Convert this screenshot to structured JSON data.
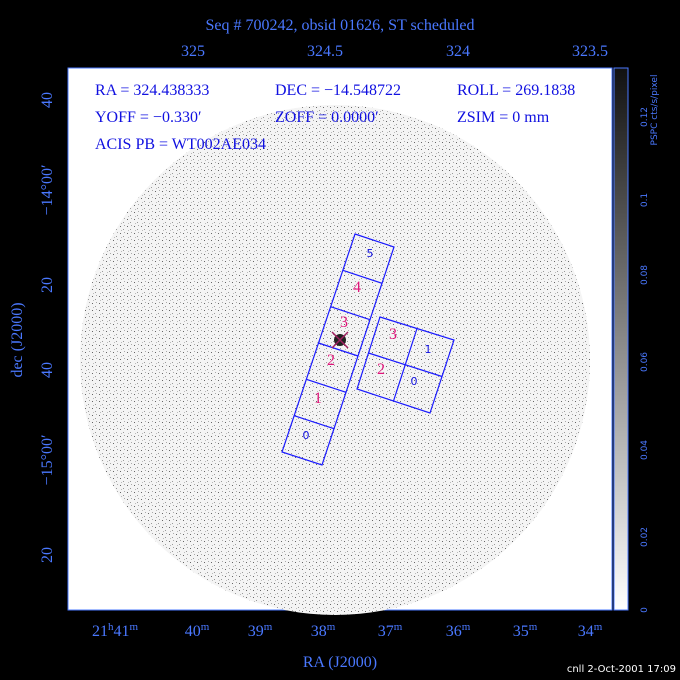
{
  "title": "Seq # 700242, obsid 01626, ST scheduled",
  "top_axis": {
    "labels": [
      "325",
      "324.5",
      "324",
      "323.5"
    ]
  },
  "left_axis": {
    "title": "dec (J2000)",
    "labels": [
      "40",
      "−14°00′",
      "20",
      "40",
      "−15°00′",
      "20"
    ]
  },
  "bottom_axis": {
    "title": "RA (J2000)",
    "labels": [
      [
        "21",
        "h",
        "41",
        "m"
      ],
      [
        "40",
        "m"
      ],
      [
        "39",
        "m"
      ],
      [
        "38",
        "m"
      ],
      [
        "37",
        "m"
      ],
      [
        "36",
        "m"
      ],
      [
        "35",
        "m"
      ],
      [
        "34",
        "m"
      ]
    ]
  },
  "annotations": [
    "RA = 324.438333",
    "DEC = −14.548722",
    "ROLL = 269.1838",
    "YOFF = −0.330′",
    "ZOFF = 0.0000′",
    "ZSIM = 0 mm",
    "ACIS PB = WT002AE034"
  ],
  "chips": [
    "5",
    "4",
    "3",
    "2",
    "1",
    "0",
    "3",
    "1",
    "2",
    "0"
  ],
  "colorbar": {
    "title": "PSPC cts/s/pixel",
    "labels": [
      "0",
      "0.02",
      "0.04",
      "0.06",
      "0.08",
      "0.1",
      "0.12"
    ]
  },
  "footer": "cnll  2-Oct-2001 17:09"
}
